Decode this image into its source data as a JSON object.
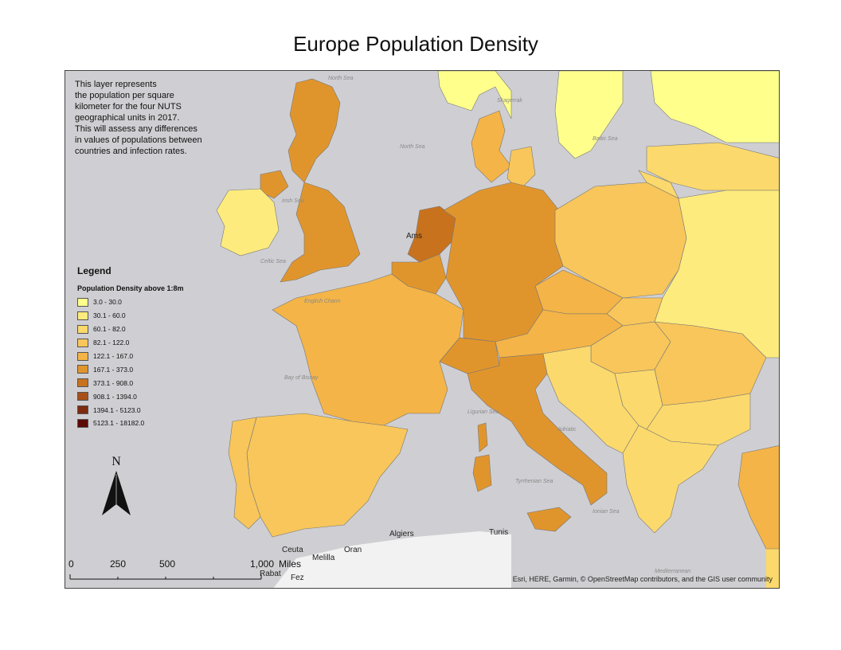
{
  "title": "Europe Population Density",
  "description": "This layer represents\n the population per square\nkilometer for the four NUTS\ngeographical units in 2017.\nThis will assess any differences\nin values of populations between\ncountries and infection rates.",
  "legend": {
    "title": "Legend",
    "subtitle": "Population Density above 1:8m",
    "classes": [
      {
        "label": "3.0 - 30.0",
        "color": "#ffff8c"
      },
      {
        "label": "30.1 - 60.0",
        "color": "#fdeb7d"
      },
      {
        "label": "60.1 - 82.0",
        "color": "#fbd96c"
      },
      {
        "label": "82.1 - 122.0",
        "color": "#f8c65a"
      },
      {
        "label": "122.1 - 167.0",
        "color": "#f4b447"
      },
      {
        "label": "167.1 - 373.0",
        "color": "#e0952c"
      },
      {
        "label": "373.1 - 908.0",
        "color": "#c8721e"
      },
      {
        "label": "908.1 - 1394.0",
        "color": "#a8501a"
      },
      {
        "label": "1394.1 - 5123.0",
        "color": "#7d2a10"
      },
      {
        "label": "5123.1 - 18182.0",
        "color": "#5c0a05"
      }
    ]
  },
  "north_arrow": "N",
  "scale": {
    "ticks": [
      "0",
      "250",
      "500",
      "1,000"
    ],
    "unit": "Miles"
  },
  "attribution": "Esri, HERE, Garmin, © OpenStreetMap contributors, and the GIS user community",
  "sea_labels": [
    "North Sea",
    "North Sea",
    "Skagerrak",
    "Baltic Sea",
    "Irish Sea",
    "Celtic Sea",
    "English Chann",
    "Bay of Biscay",
    "Ligurian Sea",
    "Tyrrhenian Sea",
    "Ionian Sea",
    "Adriatic",
    "Mediterranean"
  ],
  "city_labels": [
    "Algiers",
    "Tunis",
    "Ceuta",
    "Melilla",
    "Oran",
    "Rabat",
    "Fez",
    "Ams"
  ]
}
